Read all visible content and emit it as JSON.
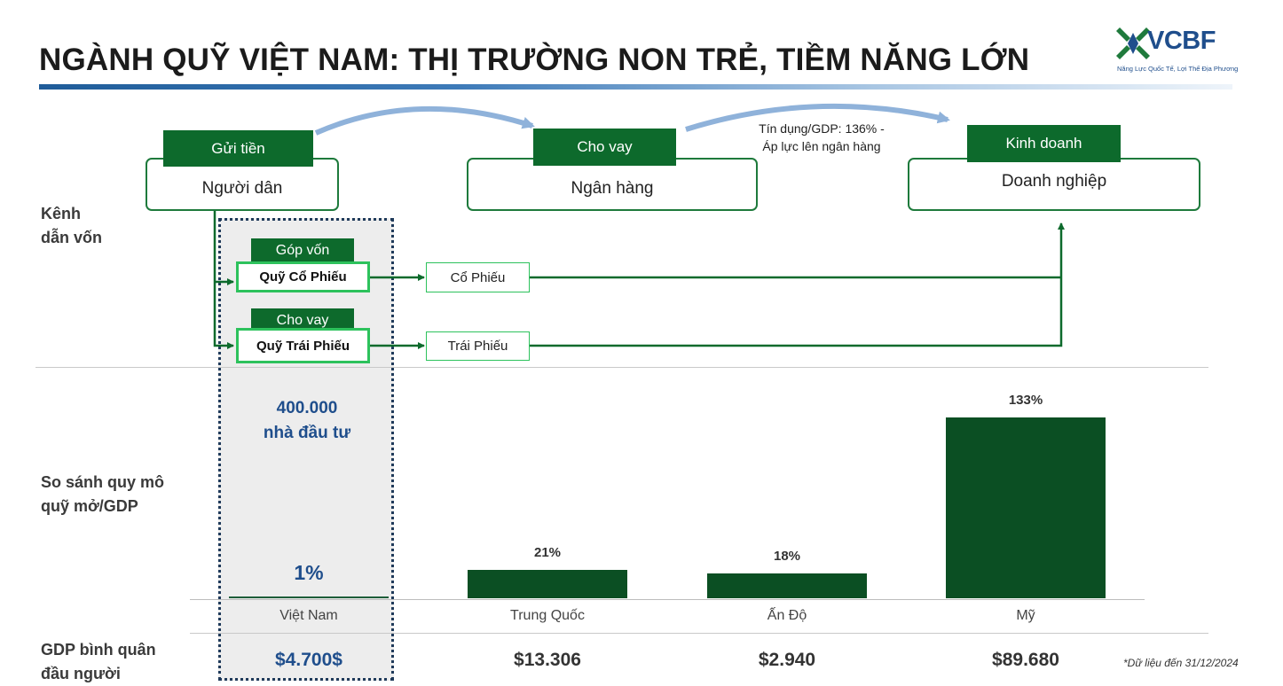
{
  "title": "NGÀNH QUỸ VIỆT NAM: THỊ TRƯỜNG NON TRẺ, TIỀM NĂNG LỚN",
  "logo": {
    "name": "VCBF",
    "tagline": "Năng Lực Quốc Tế, Lợi Thế Địa Phương"
  },
  "colors": {
    "accent": "#0b4f23",
    "tag": "#0d6a2c",
    "fund_border": "#2dc25c",
    "highlight_text": "#1f4e8c",
    "arrow": "#8fb2da"
  },
  "sections": {
    "channel": "Kênh\ndẫn vốn",
    "fund_compare": "So sánh quy mô\nquỹ mở/GDP",
    "gdp": "GDP bình quân\nđầu người"
  },
  "flow": {
    "people": {
      "tag": "Gửi tiền",
      "label": "Người dân"
    },
    "bank": {
      "tag": "Cho vay",
      "label": "Ngân hàng"
    },
    "business": {
      "tag": "Kinh doanh",
      "label": "Doanh nghiệp"
    },
    "credit_note": "Tín dụng/GDP: 136% -\nÁp lực lên ngân hàng",
    "equity_fund": {
      "tag": "Góp vốn",
      "label": "Quỹ Cổ Phiếu",
      "asset": "Cổ Phiếu"
    },
    "bond_fund": {
      "tag": "Cho vay",
      "label": "Quỹ Trái Phiếu",
      "asset": "Trái Phiếu"
    }
  },
  "investors_note": "400.000\nnhà đầu tư",
  "chart_data": {
    "type": "bar",
    "categories": [
      "Việt Nam",
      "Trung Quốc",
      "Ấn Độ",
      "Mỹ"
    ],
    "values": [
      1,
      21,
      18,
      133
    ],
    "value_labels": [
      "1%",
      "21%",
      "18%",
      "133%"
    ],
    "title": "",
    "xlabel": "",
    "ylabel": "",
    "ylim": [
      0,
      133
    ],
    "grid": false
  },
  "gdp_per_capita": [
    "$4.700$",
    "$13.306",
    "$2.940",
    "$89.680"
  ],
  "footnote": "*Dữ liệu đến 31/12/2024"
}
